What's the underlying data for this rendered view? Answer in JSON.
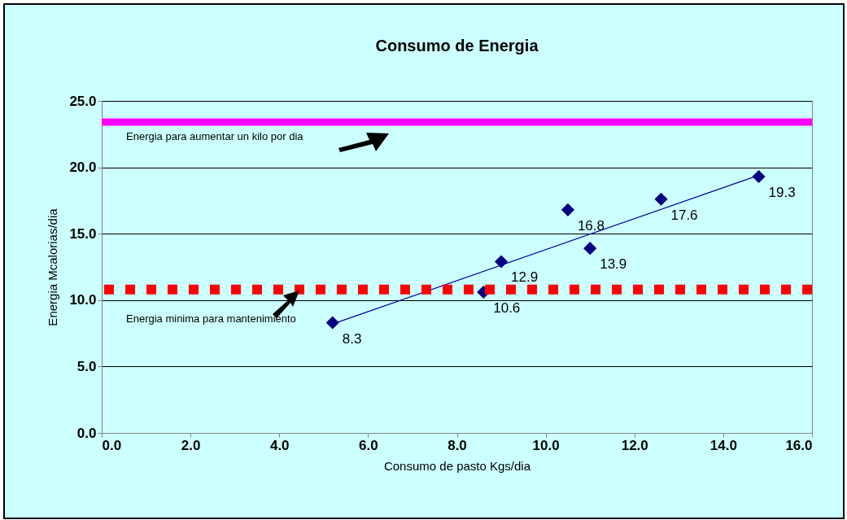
{
  "chart_data": {
    "type": "scatter",
    "title": "Consumo de Energia",
    "xlabel": "Consumo de pasto Kgs/dia",
    "ylabel": "Energia Mcalorias/dia",
    "x": [
      5.2,
      8.6,
      9.0,
      10.5,
      11.0,
      12.6,
      14.8
    ],
    "series": [
      {
        "color": "#000080",
        "marker": "diamond",
        "values": [
          8.3,
          10.6,
          12.9,
          16.8,
          13.9,
          17.6,
          19.3
        ],
        "value_labels": [
          "8.3",
          "10.6",
          "12.9",
          "16.8",
          "13.9",
          "17.6",
          "19.3"
        ]
      },
      {
        "type": "line",
        "color": "#0000a0",
        "x": [
          5.2,
          14.8
        ],
        "values": [
          8.2,
          19.4
        ]
      }
    ],
    "ref_lines": [
      {
        "axis": "y",
        "value": 23.4,
        "label": "Energia para aumentar un kilo por dia",
        "color": "#ff00ff",
        "line_style": "solid"
      },
      {
        "axis": "y",
        "value": 10.8,
        "label": "Energia minima para mantenimiento",
        "color": "#ff0000",
        "line_style": "dotted"
      }
    ],
    "xlim": [
      0,
      16
    ],
    "xticks": [
      {
        "value": 0,
        "label": "0.0"
      },
      {
        "value": 2,
        "label": "2.0"
      },
      {
        "value": 4,
        "label": "4.0"
      },
      {
        "value": 6,
        "label": "6.0"
      },
      {
        "value": 8,
        "label": "8.0"
      },
      {
        "value": 10,
        "label": "10.0"
      },
      {
        "value": 12,
        "label": "12.0"
      },
      {
        "value": 14,
        "label": "14.0"
      },
      {
        "value": 16,
        "label": "16.0"
      }
    ],
    "ylim": [
      0,
      25
    ],
    "yticks": [
      {
        "value": 0,
        "label": "0.0"
      },
      {
        "value": 5,
        "label": "5.0"
      },
      {
        "value": 10,
        "label": "10.0"
      },
      {
        "value": 15,
        "label": "15.0"
      },
      {
        "value": 20,
        "label": "20.0"
      },
      {
        "value": 25,
        "label": "25.0"
      }
    ],
    "grid": "y"
  }
}
